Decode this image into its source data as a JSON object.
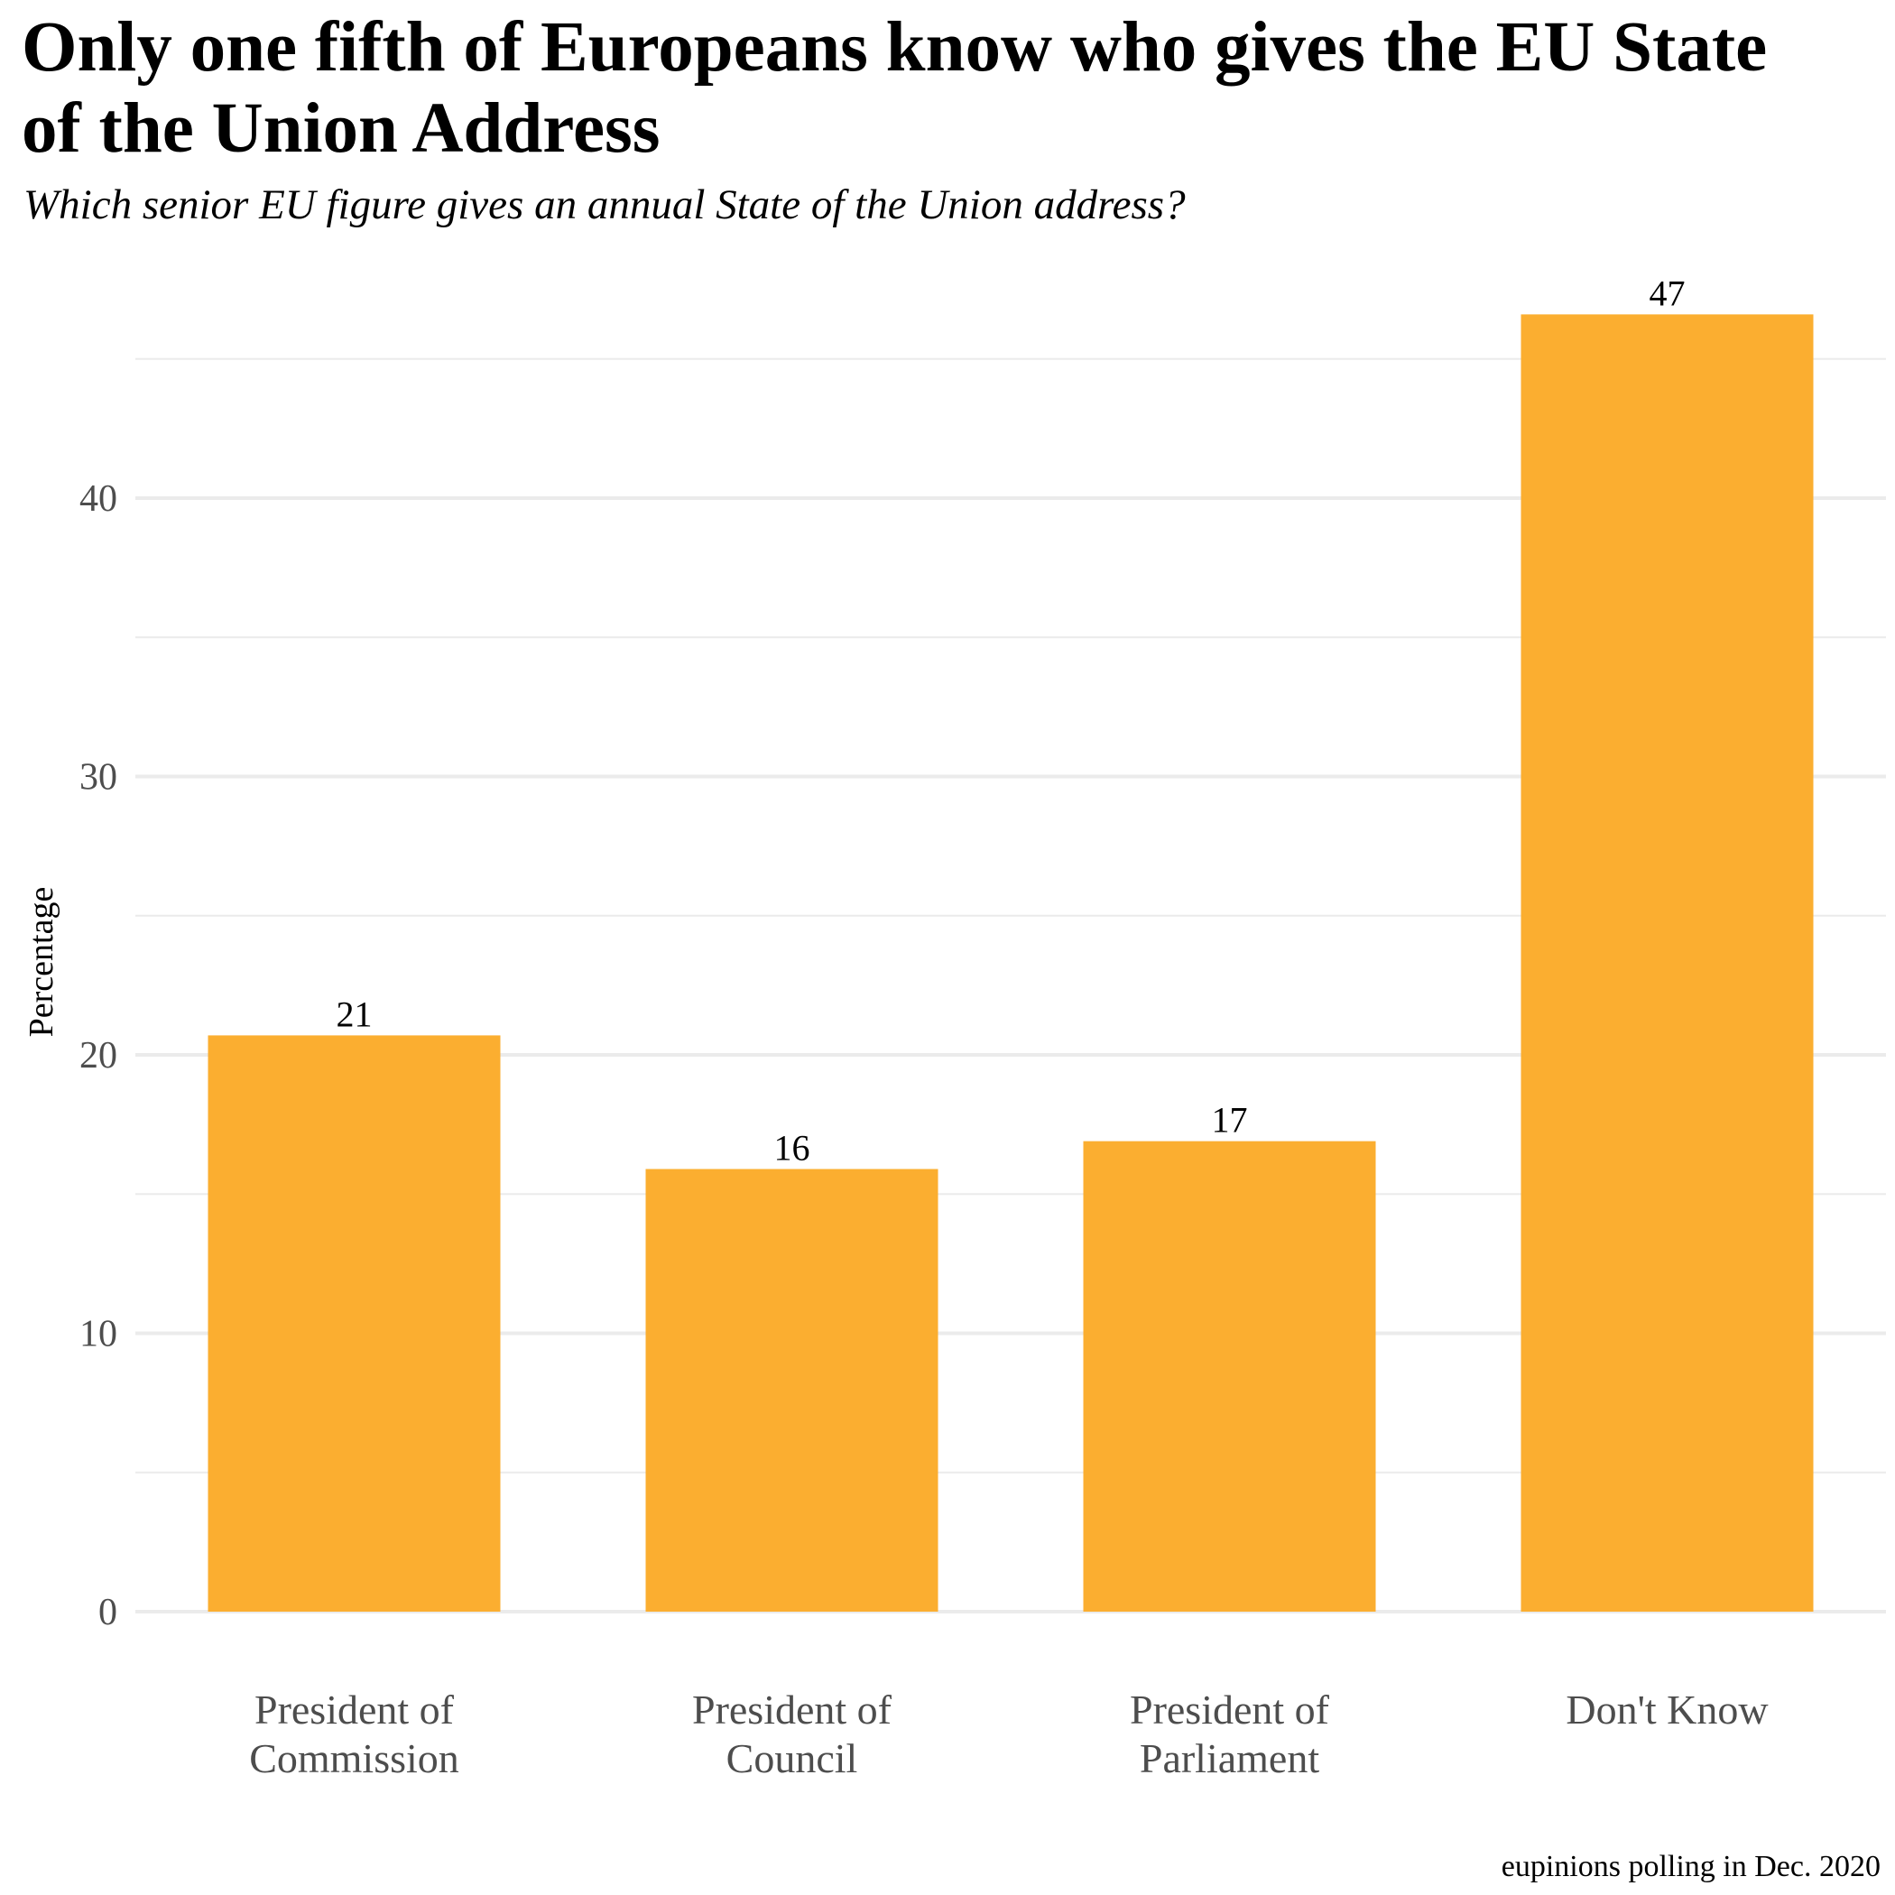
{
  "title": "Only one fifth of Europeans know who gives the EU State\n of the Union Address",
  "subtitle": "Which senior EU figure gives an annual State of the Union address?",
  "caption": "eupinions polling in Dec. 2020",
  "chart_data": {
    "type": "bar",
    "title": "Only one fifth of Europeans know who gives the EU State of the Union Address",
    "subtitle": "Which senior EU figure gives an annual State of the Union address?",
    "xlabel": "",
    "ylabel": "Percentage",
    "categories": [
      [
        "President of",
        "Commission"
      ],
      [
        "President of",
        "Council"
      ],
      [
        "President of",
        "Parliament"
      ],
      [
        "Don't Know"
      ]
    ],
    "values": [
      20.7,
      15.9,
      16.9,
      46.6
    ],
    "data_labels": [
      "21",
      "16",
      "17",
      "47"
    ],
    "ylim": [
      0,
      48.4
    ],
    "yticks": [
      0,
      10,
      20,
      30,
      40
    ],
    "minor_gridlines": [
      5,
      15,
      25,
      35,
      45
    ],
    "grid": true,
    "legend": "none",
    "bar_color": "#FBAE30",
    "gridline_color": "#EBEBEB",
    "tick_label_color": "#4D4D4D"
  }
}
